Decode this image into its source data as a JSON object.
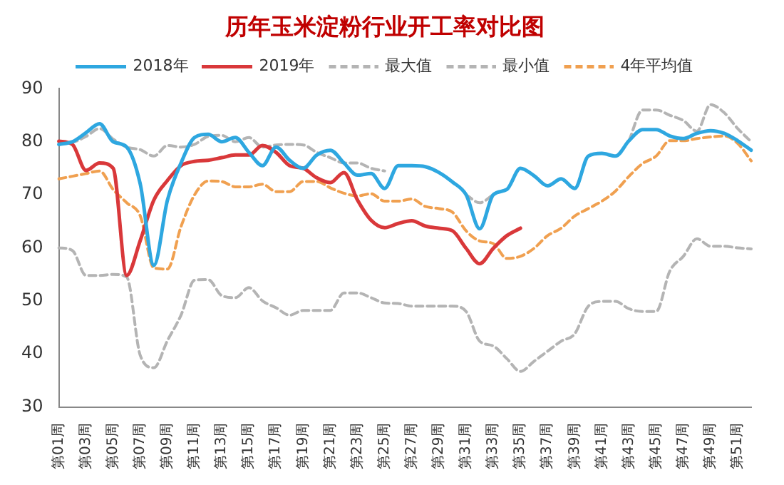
{
  "chart_data": {
    "type": "line",
    "title": "历年玉米淀粉行业开工率对比图",
    "categories": [
      "第01周",
      null,
      "第03周",
      null,
      "第05周",
      null,
      "第07周",
      null,
      "第09周",
      null,
      "第11周",
      null,
      "第13周",
      null,
      "第15周",
      null,
      "第17周",
      null,
      "第19周",
      null,
      "第21周",
      null,
      "第23周",
      null,
      "第25周",
      null,
      "第27周",
      null,
      "第29周",
      null,
      "第31周",
      null,
      "第33周",
      null,
      "第35周",
      null,
      "第37周",
      null,
      "第39周",
      null,
      "第41周",
      null,
      "第43周",
      null,
      "第45周",
      null,
      "第47周",
      null,
      "第49周",
      null,
      "第51周",
      null
    ],
    "series": [
      {
        "name": "2018年",
        "color": "#2ea7e0",
        "line_style": "solid",
        "values": [
          79.5,
          80,
          81.7,
          83.4,
          80,
          79,
          72,
          56.7,
          69,
          76,
          80.8,
          81.4,
          80,
          80.8,
          78,
          75.5,
          79,
          76.5,
          75,
          77.5,
          78.4,
          76,
          73.7,
          74,
          71.2,
          75.5,
          75.5,
          75.3,
          74.2,
          72.4,
          70,
          63.6,
          70,
          71,
          75,
          73.6,
          71.7,
          73,
          71.2,
          77.3,
          77.8,
          77.3,
          80.2,
          82.3,
          82.3,
          81.1,
          80.6,
          81.6,
          82.1,
          81.6,
          80.2,
          78.4
        ]
      },
      {
        "name": "2019年",
        "color": "#d9383a",
        "line_style": "solid",
        "values": [
          80.1,
          79.5,
          74.6,
          76,
          75,
          54.8,
          61.4,
          69,
          72.7,
          75.5,
          76.3,
          76.5,
          77,
          77.5,
          77.5,
          79.3,
          78,
          75.5,
          75,
          73.2,
          72.3,
          74.2,
          69,
          65.2,
          63.8,
          64.6,
          65.1,
          64.1,
          63.7,
          63.2,
          59.9,
          57,
          59.9,
          62.3,
          63.7,
          null,
          null,
          null,
          null,
          null,
          null,
          null,
          null,
          null,
          null,
          null,
          null,
          null,
          null,
          null,
          null,
          null
        ]
      },
      {
        "name": "最大值",
        "color": "#b4b4b4",
        "line_style": "dashed",
        "values": [
          80,
          80,
          81,
          82.5,
          80.5,
          79,
          78.5,
          77.3,
          79.3,
          79,
          79.5,
          81,
          81.2,
          80,
          80.8,
          79,
          79.4,
          79.5,
          79.4,
          78,
          77,
          76,
          76,
          75,
          74.5,
          null,
          null,
          null,
          null,
          null,
          70,
          68.5,
          70,
          null,
          null,
          null,
          null,
          null,
          null,
          null,
          null,
          null,
          80.2,
          86,
          86,
          85,
          84,
          82,
          87,
          85.5,
          82.5,
          80
        ]
      },
      {
        "name": "最小值",
        "color": "#b4b4b4",
        "line_style": "dashed",
        "values": [
          60,
          59.5,
          54.8,
          54.8,
          55,
          54.5,
          39.7,
          37.4,
          42.5,
          47.3,
          53.9,
          54,
          51,
          50.6,
          52.5,
          50,
          48.7,
          47.3,
          48.2,
          48.2,
          48.2,
          51.5,
          51.5,
          50.6,
          49.6,
          49.5,
          49,
          49,
          49,
          49,
          48,
          42.4,
          41.5,
          39.1,
          36.7,
          38.6,
          40.5,
          42.4,
          43.8,
          49,
          49.9,
          49.9,
          48.5,
          48,
          48,
          55.6,
          58.4,
          61.7,
          60.3,
          60.3,
          60,
          59.8
        ]
      },
      {
        "name": "4年平均值",
        "color": "#f0a050",
        "line_style": "dashed",
        "values": [
          73,
          73.5,
          74,
          74.5,
          71,
          68.5,
          66,
          56.2,
          56,
          64,
          70,
          72.6,
          72.5,
          71.5,
          71.5,
          72,
          70.6,
          70.6,
          72.5,
          72.5,
          71.3,
          70.3,
          69.8,
          70.2,
          68.8,
          68.8,
          69.2,
          67.8,
          67.4,
          66.7,
          63.2,
          61.3,
          60.8,
          58,
          58.4,
          59.9,
          62.3,
          63.7,
          66,
          67.4,
          68.8,
          70.7,
          73.5,
          75.9,
          77.3,
          80.2,
          80.2,
          80.6,
          80.9,
          81.1,
          79.7,
          76.4
        ]
      }
    ],
    "ylim": [
      30,
      90
    ],
    "yticks": [
      30,
      40,
      50,
      60,
      70,
      80,
      90
    ],
    "grid": false,
    "legend": "top",
    "marker": "none"
  }
}
